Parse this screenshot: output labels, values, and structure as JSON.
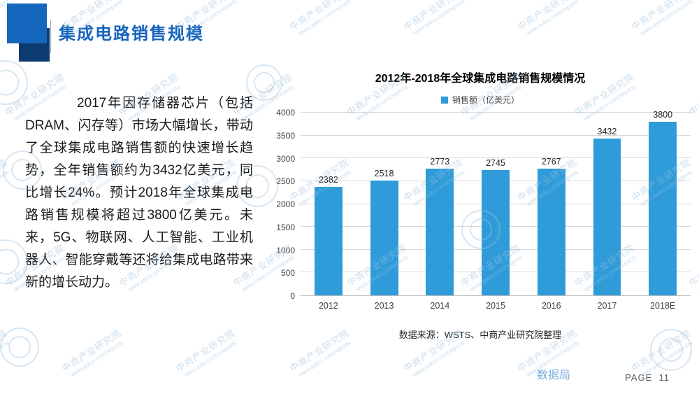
{
  "slide": {
    "title": "集成电路销售规模",
    "body_text": "2017年因存储器芯片（包括DRAM、闪存等）市场大幅增长，带动了全球集成电路销售额的快速增长趋势，全年销售额约为3432亿美元，同比增长24%。预计2018年全球集成电路销售规模将超过3800亿美元。未来，5G、物联网、人工智能、工业机器人、智能穿戴等还将给集成电路带来新的增长动力。",
    "brand_label": "数据局",
    "page_label": "PAGE",
    "page_number": "11"
  },
  "watermark": {
    "line1": "中商产业研究院",
    "line2": "www.askci.com/reports",
    "color": "#9fc3dd"
  },
  "chart_data": {
    "type": "bar",
    "title": "2012年-2018年全球集成电路销售规模情况",
    "legend": "销售额（亿美元）",
    "categories": [
      "2012",
      "2013",
      "2014",
      "2015",
      "2016",
      "2017",
      "2018E"
    ],
    "values": [
      2382,
      2518,
      2773,
      2745,
      2767,
      3432,
      3800
    ],
    "ylabel_ticks": [
      0,
      500,
      1000,
      1500,
      2000,
      2500,
      3000,
      3500,
      4000
    ],
    "ylim": [
      0,
      4000
    ],
    "grid": true,
    "legend_position": "top",
    "bar_color": "#2f9bd9",
    "source": "数据来源：WSTS、中商产业研究院整理"
  }
}
